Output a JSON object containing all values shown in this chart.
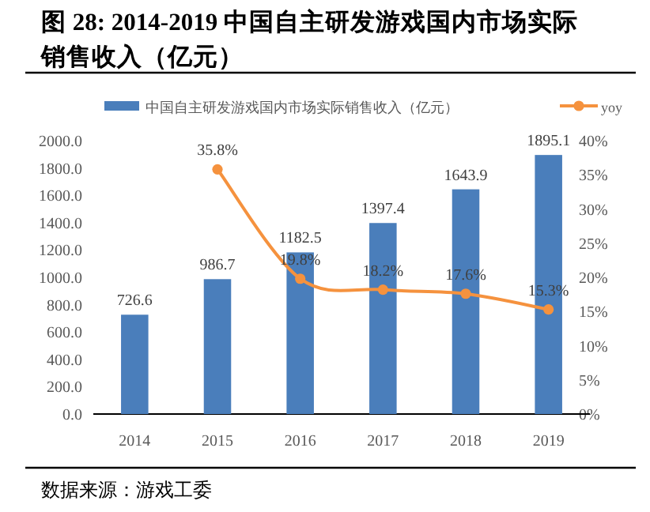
{
  "chart_data": {
    "type": "bar",
    "title": "图  28: 2014-2019 中国自主研发游戏国内市场实际销售收入（亿元）",
    "categories": [
      "2014",
      "2015",
      "2016",
      "2017",
      "2018",
      "2019"
    ],
    "series": [
      {
        "name": "中国自主研发游戏国内市场实际销售收入（亿元）",
        "color": "#4a7ebb",
        "values": [
          726.6,
          986.7,
          1182.5,
          1397.4,
          1643.9,
          1895.1
        ],
        "value_labels": [
          "726.6",
          "986.7",
          "1182.5",
          "1397.4",
          "1643.9",
          "1895.1"
        ]
      },
      {
        "name": "yoy",
        "type": "line",
        "axis": "y2",
        "color": "#f5923e",
        "values": [
          null,
          35.8,
          19.8,
          18.2,
          17.6,
          15.3
        ],
        "value_labels": [
          null,
          "35.8%",
          "19.8%",
          "18.2%",
          "17.6%",
          "15.3%"
        ]
      }
    ],
    "ylim": [
      0,
      2000
    ],
    "yticks": [
      {
        "value": 0,
        "label": "0.0"
      },
      {
        "value": 200,
        "label": "200.0"
      },
      {
        "value": 400,
        "label": "400.0"
      },
      {
        "value": 600,
        "label": "600.0"
      },
      {
        "value": 800,
        "label": "800.0"
      },
      {
        "value": 1000,
        "label": "1000.0"
      },
      {
        "value": 1200,
        "label": "1200.0"
      },
      {
        "value": 1400,
        "label": "1400.0"
      },
      {
        "value": 1600,
        "label": "1600.0"
      },
      {
        "value": 1800,
        "label": "1800.0"
      },
      {
        "value": 2000,
        "label": "2000.0"
      }
    ],
    "y2lim": [
      0,
      40
    ],
    "y2ticks": [
      {
        "value": 0,
        "label": "0%"
      },
      {
        "value": 5,
        "label": "5%"
      },
      {
        "value": 10,
        "label": "10%"
      },
      {
        "value": 15,
        "label": "15%"
      },
      {
        "value": 20,
        "label": "20%"
      },
      {
        "value": 25,
        "label": "25%"
      },
      {
        "value": 30,
        "label": "30%"
      },
      {
        "value": 35,
        "label": "35%"
      },
      {
        "value": 40,
        "label": "40%"
      }
    ],
    "legend": "top",
    "marker": "circle",
    "annotations": [
      "数据来源：游戏工委"
    ]
  }
}
